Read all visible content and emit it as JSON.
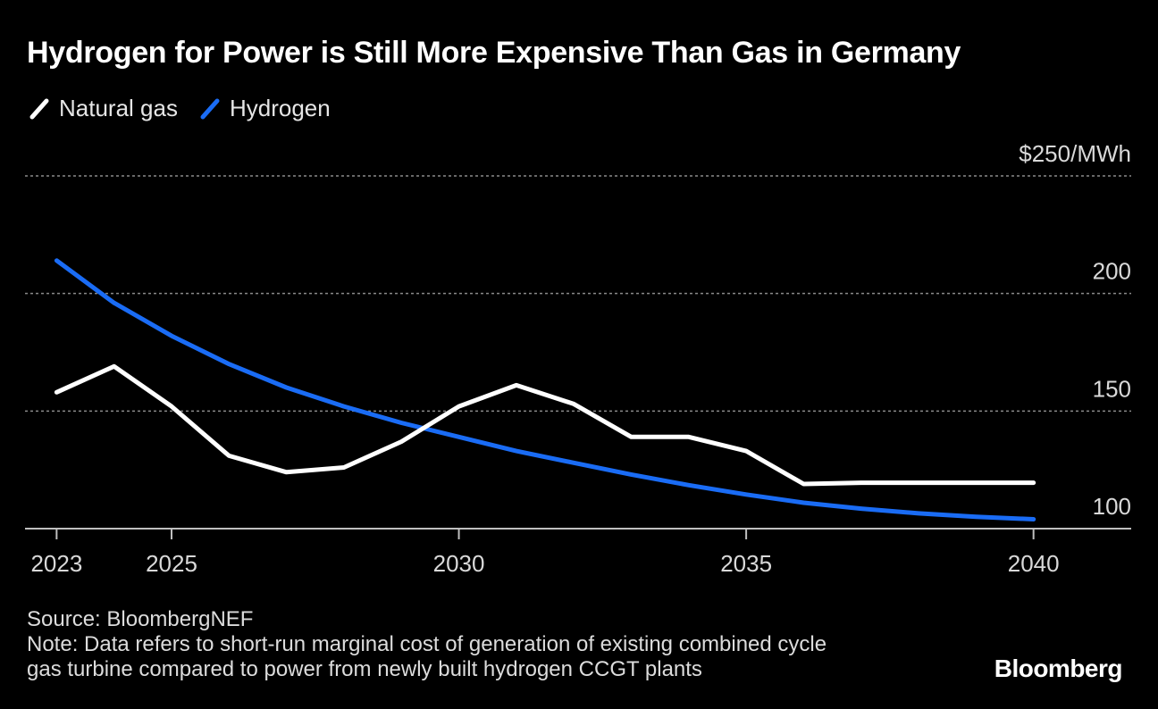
{
  "title": "Hydrogen for Power is Still More Expensive Than Gas in Germany",
  "legend": [
    {
      "label": "Natural gas",
      "color": "#ffffff"
    },
    {
      "label": "Hydrogen",
      "color": "#1a6cf5"
    }
  ],
  "chart_data": {
    "type": "line",
    "x": [
      2023,
      2024,
      2025,
      2026,
      2027,
      2028,
      2029,
      2030,
      2031,
      2032,
      2033,
      2034,
      2035,
      2036,
      2037,
      2038,
      2039,
      2040
    ],
    "series": [
      {
        "name": "Natural gas",
        "color": "#ffffff",
        "values": [
          158,
          169,
          152,
          131,
          124,
          126,
          137,
          152,
          161,
          153,
          139,
          139,
          133,
          119,
          119.5,
          119.5,
          119.5,
          119.5
        ]
      },
      {
        "name": "Hydrogen",
        "color": "#1a6cf5",
        "values": [
          214,
          196,
          182,
          170,
          160,
          152,
          145,
          139,
          133,
          128,
          123,
          118.5,
          114.5,
          111,
          108.5,
          106.5,
          105,
          104
        ]
      }
    ],
    "xticks": [
      {
        "value": 2023,
        "label": "2023"
      },
      {
        "value": 2025,
        "label": "2025"
      },
      {
        "value": 2030,
        "label": "2030"
      },
      {
        "value": 2035,
        "label": "2035"
      },
      {
        "value": 2040,
        "label": "2040"
      }
    ],
    "yticks": [
      {
        "value": 250,
        "label": "$250/MWh"
      },
      {
        "value": 200,
        "label": "200"
      },
      {
        "value": 150,
        "label": "150"
      },
      {
        "value": 100,
        "label": "100"
      }
    ],
    "ylim": [
      100,
      250
    ],
    "xlim": [
      2022.45,
      2041.7
    ],
    "grid": true
  },
  "footer": {
    "source": "Source: BloombergNEF",
    "note_line1": "Note: Data refers to short-run marginal cost of generation of existing combined cycle",
    "note_line2": "gas turbine compared to power from newly built hydrogen CCGT plants"
  },
  "logo": "Bloomberg"
}
